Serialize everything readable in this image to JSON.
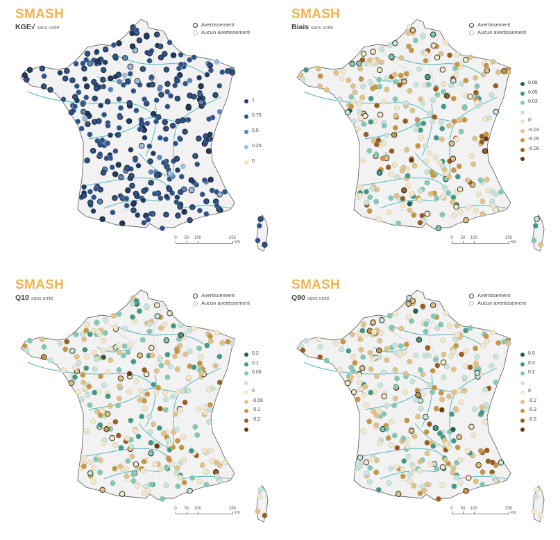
{
  "legend_status": {
    "warning_label": "Avertissement",
    "no_warning_label": "Aucun avertissement"
  },
  "scale_bar": {
    "ticks": [
      "0",
      "50",
      "100",
      "250"
    ],
    "unit": "km"
  },
  "panels": [
    {
      "id": "kge",
      "title": "SMASH",
      "metric": "KGE√",
      "unit": "sans unité",
      "legend": [
        {
          "label": "1",
          "color": "#1f3a64"
        },
        {
          "label": "0.75",
          "color": "#2c5288"
        },
        {
          "label": "0.5",
          "color": "#5a85bd"
        },
        {
          "label": "0.25",
          "color": "#9dbfdf"
        },
        {
          "label": "0",
          "color": "#fde3a5"
        }
      ]
    },
    {
      "id": "biais",
      "title": "SMASH",
      "metric": "Biais",
      "unit": "sans unité",
      "legend": [
        {
          "label": "0.08",
          "color": "#1f5f52"
        },
        {
          "label": "0.05",
          "color": "#3f9a86"
        },
        {
          "label": "0.03",
          "color": "#7ecab4"
        },
        {
          "label": "",
          "color": "#c5e6da"
        },
        {
          "label": "0",
          "color": "#f3e7c4"
        },
        {
          "label": "-0.03",
          "color": "#e0c285"
        },
        {
          "label": "-0.05",
          "color": "#c8963f"
        },
        {
          "label": "-0.08",
          "color": "#9c5d1c"
        },
        {
          "label": "",
          "color": "#6d3a10"
        }
      ]
    },
    {
      "id": "q10",
      "title": "SMASH",
      "metric": "Q10",
      "unit": "sans unité",
      "legend": [
        {
          "label": "0.2",
          "color": "#1f5f52"
        },
        {
          "label": "0.1",
          "color": "#3f9a86"
        },
        {
          "label": "0.06",
          "color": "#7ecab4"
        },
        {
          "label": "",
          "color": "#c5e6da"
        },
        {
          "label": "0",
          "color": "#f3e7c4"
        },
        {
          "label": "-0.06",
          "color": "#e0c285"
        },
        {
          "label": "-0.1",
          "color": "#c8963f"
        },
        {
          "label": "-0.2",
          "color": "#9c5d1c"
        },
        {
          "label": "",
          "color": "#6d3a10"
        }
      ]
    },
    {
      "id": "q90",
      "title": "SMASH",
      "metric": "Q90",
      "unit": "sans unité",
      "legend": [
        {
          "label": "0.5",
          "color": "#1f5f52"
        },
        {
          "label": "0.3",
          "color": "#3f9a86"
        },
        {
          "label": "0.2",
          "color": "#7ecab4"
        },
        {
          "label": "",
          "color": "#c5e6da"
        },
        {
          "label": "0",
          "color": "#f3e7c4"
        },
        {
          "label": "-0.2",
          "color": "#e0c285"
        },
        {
          "label": "-0.3",
          "color": "#c8963f"
        },
        {
          "label": "-0.5",
          "color": "#9c5d1c"
        },
        {
          "label": "",
          "color": "#6d3a10"
        }
      ]
    }
  ]
}
